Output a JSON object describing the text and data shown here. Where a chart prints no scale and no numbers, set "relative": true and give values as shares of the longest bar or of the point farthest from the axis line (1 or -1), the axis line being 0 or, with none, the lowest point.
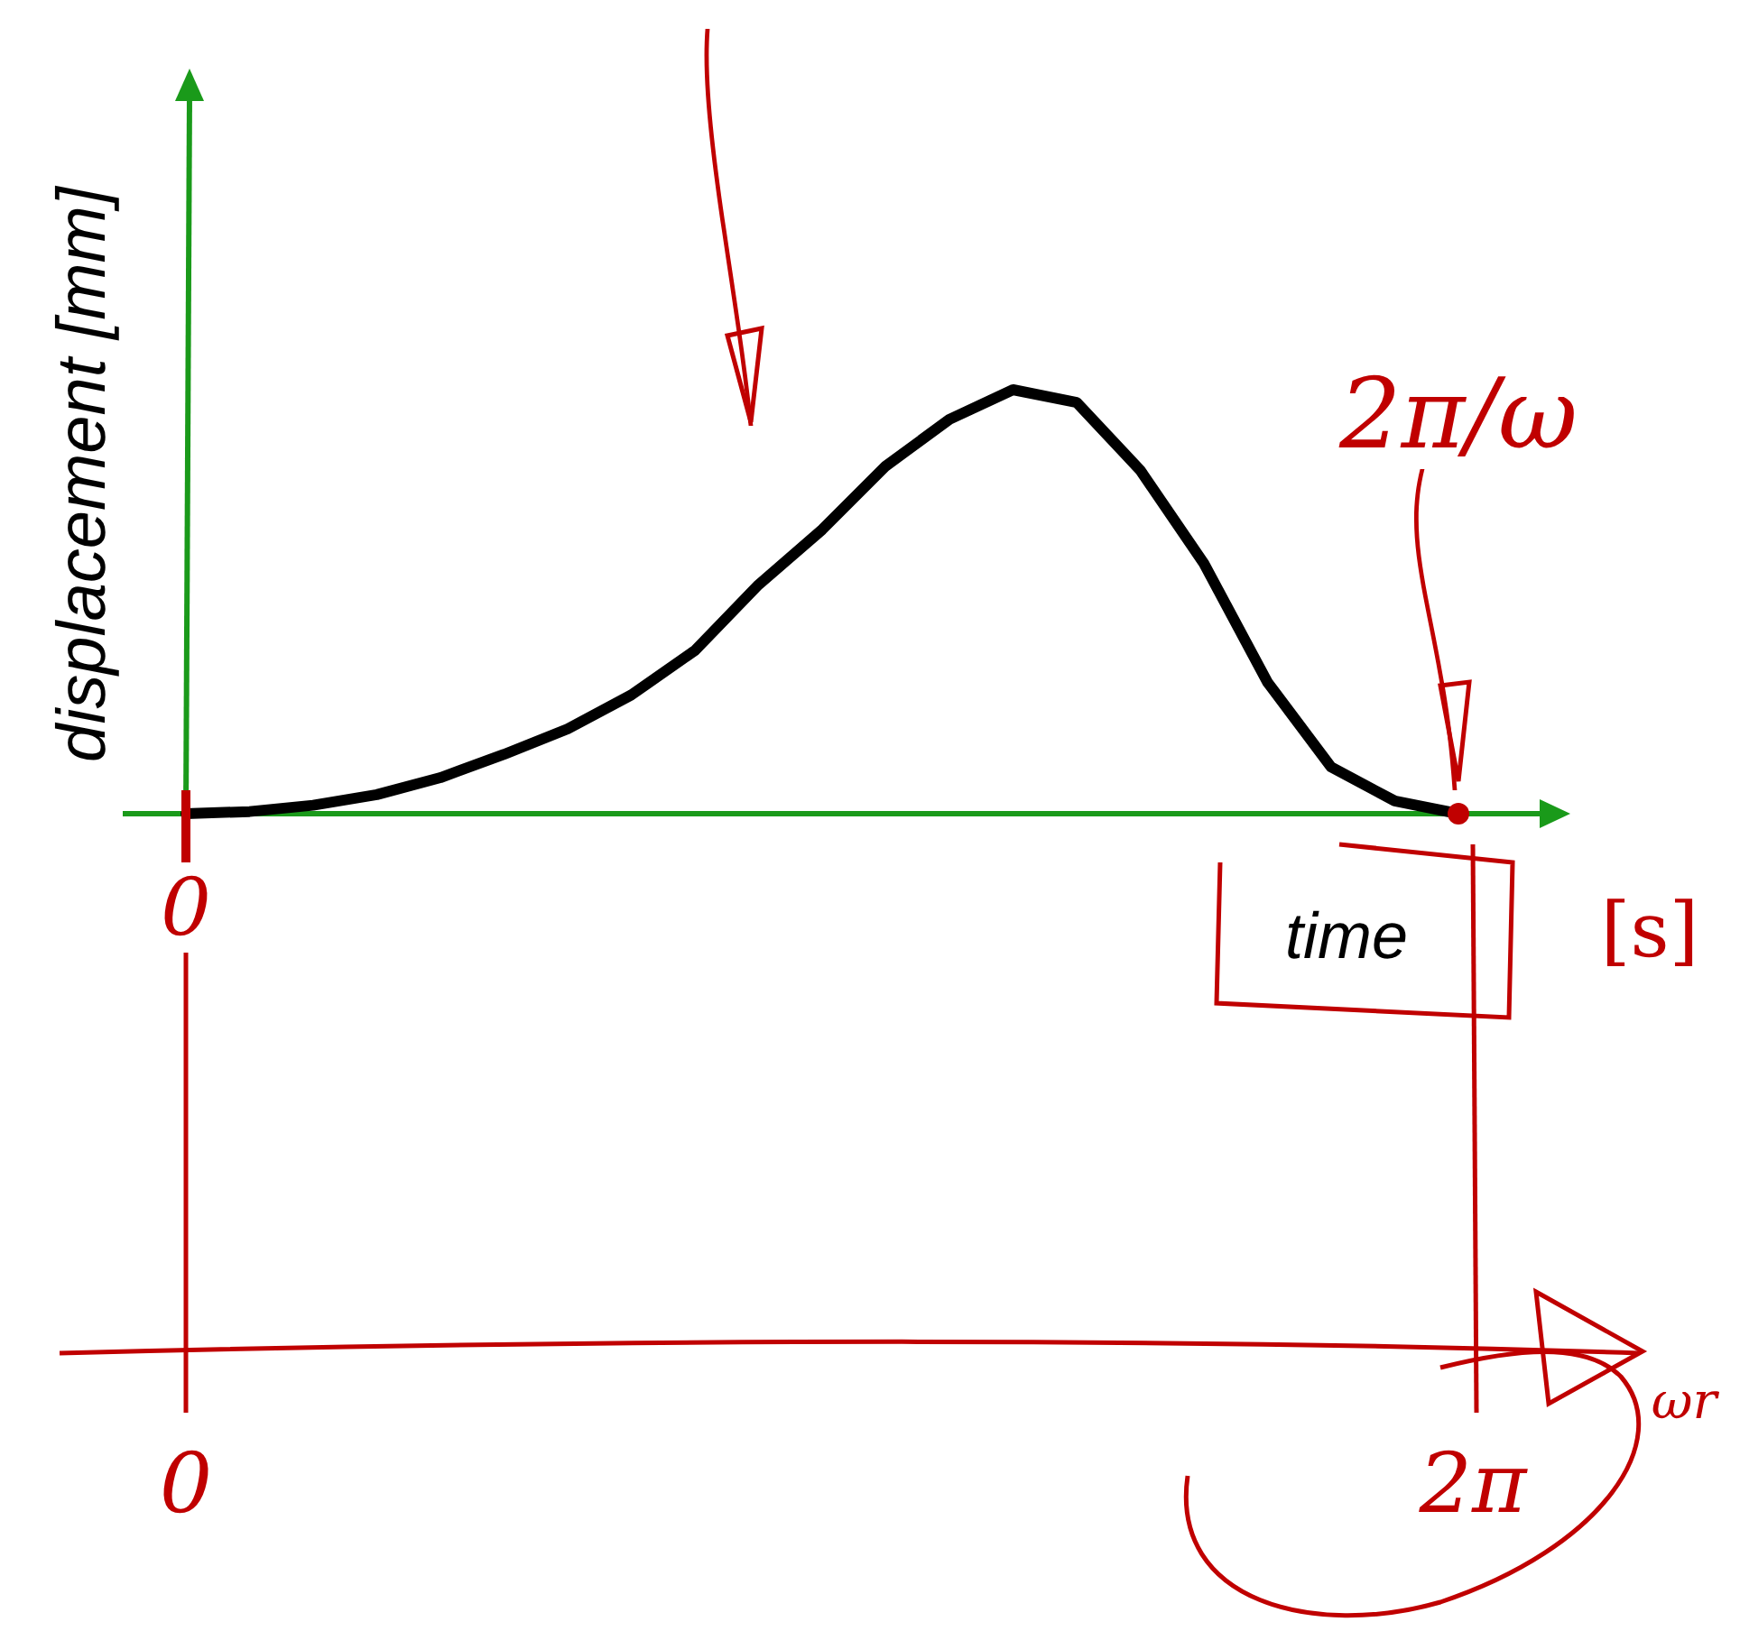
{
  "chart_data": {
    "type": "line",
    "relative": true,
    "xlabel": "time",
    "ylabel": "displacement [mm]",
    "categories": [
      "0",
      null,
      null,
      null,
      null,
      null,
      null,
      null,
      null,
      null,
      null,
      null,
      null,
      null,
      null,
      null,
      null,
      null,
      null,
      null,
      "2π/ω"
    ],
    "series": [
      {
        "color": "#000000",
        "values": [
          0,
          0.005,
          0.02,
          0.045,
          0.085,
          0.14,
          0.2,
          0.28,
          0.385,
          0.54,
          0.67,
          0.82,
          0.93,
          1,
          0.97,
          0.81,
          0.59,
          0.31,
          0.11,
          0.03,
          0
        ]
      }
    ],
    "annotations": [
      "[s]",
      "0",
      "2π",
      "ωr"
    ],
    "line_style": "solid"
  }
}
